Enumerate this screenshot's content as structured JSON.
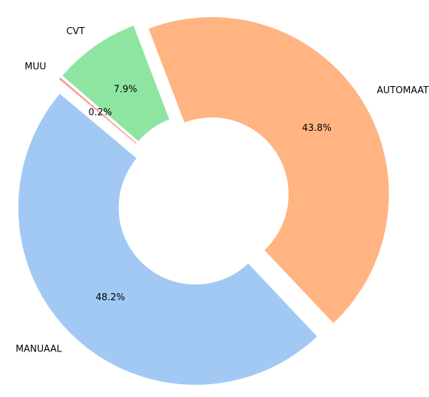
{
  "chart_data": {
    "type": "pie",
    "style": "donut",
    "title": "",
    "categories": [
      "MANUAAL",
      "AUTOMAAT",
      "CVT",
      "MUU"
    ],
    "values": [
      48.2,
      43.8,
      7.9,
      0.2
    ],
    "value_labels": [
      "48.2%",
      "43.8%",
      "7.9%",
      "0.2%"
    ],
    "colors": [
      "#a1c9f4",
      "#ffb482",
      "#8de5a1",
      "#ff9f9b"
    ],
    "exploded": true,
    "legend": "none"
  }
}
